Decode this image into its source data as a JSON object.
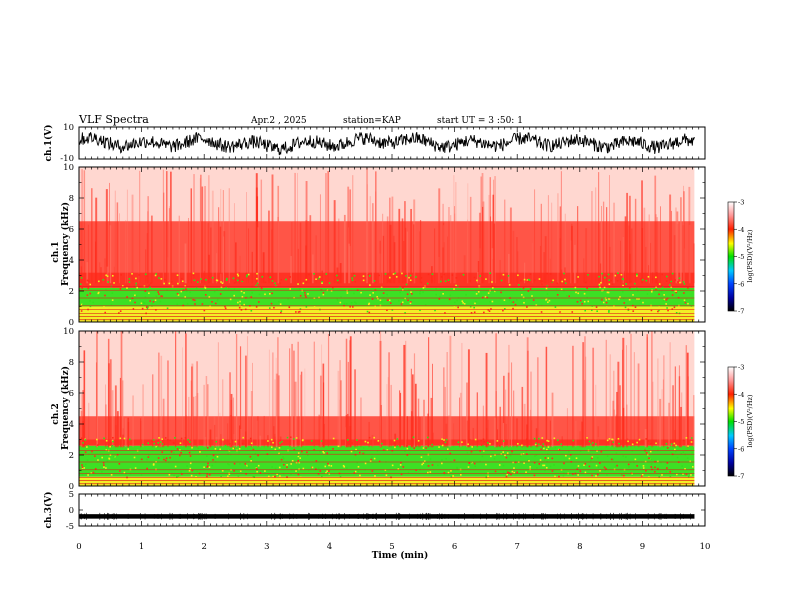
{
  "header": {
    "title": "VLF Spectra",
    "date": "Apr.2 , 2025",
    "station": "station=KAP",
    "start_time": "start UT = 3 :50: 1"
  },
  "colors": {
    "spectrogram_low": "#ff2a1a",
    "spectrogram_mid": "#33e01a",
    "spectrogram_high": "#f2ef1e",
    "background_quiet": "#ffd7d0"
  },
  "chart_data": [
    {
      "type": "line",
      "name": "waveform-ch1",
      "ylabel": "ch.1(V)",
      "ylim": [
        -10,
        10
      ],
      "y_tick_labels": [
        "10",
        "-10"
      ],
      "x": [
        0,
        1,
        2,
        3,
        4,
        5,
        6,
        7,
        8,
        9,
        9.83
      ],
      "y_approx_center": [
        2,
        -1,
        1,
        -2,
        0,
        2,
        -1,
        1,
        0,
        -1,
        0
      ],
      "y_approx_amplitude": 6
    },
    {
      "type": "heatmap",
      "name": "spectrogram-ch1",
      "ylabel": "ch.1 Frequency (kHz)",
      "ylim": [
        0,
        10
      ],
      "y_ticks": [
        0,
        2,
        4,
        6,
        8,
        10
      ],
      "y_tick_labels": [
        "0",
        "2",
        "4",
        "6",
        "8",
        "10"
      ],
      "xlim": [
        0,
        10
      ],
      "data_end_min": 9.83,
      "bands_khz": [
        {
          "from": 0,
          "to": 1.0,
          "level": "high"
        },
        {
          "from": 1.0,
          "to": 2.2,
          "level": "mid"
        },
        {
          "from": 2.2,
          "to": 3.2,
          "level": "mixed"
        },
        {
          "from": 3.2,
          "to": 6.5,
          "level": "low"
        },
        {
          "from": 6.5,
          "to": 10,
          "level": "quiet"
        }
      ],
      "colorbar": {
        "label": "log(PSD)(V²/Hz)",
        "ticks": [
          -3,
          -4,
          -5,
          -6,
          -7
        ],
        "tick_labels": [
          "-3",
          "-4",
          "-5",
          "-6",
          "-7"
        ],
        "range": [
          -7,
          -3
        ]
      }
    },
    {
      "type": "heatmap",
      "name": "spectrogram-ch2",
      "ylabel": "ch.2 Frequency (kHz)",
      "ylim": [
        0,
        10
      ],
      "y_ticks": [
        0,
        2,
        4,
        6,
        8,
        10
      ],
      "y_tick_labels": [
        "0",
        "2",
        "4",
        "6",
        "8",
        "10"
      ],
      "xlim": [
        0,
        10
      ],
      "data_end_min": 9.83,
      "bands_khz": [
        {
          "from": 0,
          "to": 0.6,
          "level": "high"
        },
        {
          "from": 0.6,
          "to": 2.6,
          "level": "mid"
        },
        {
          "from": 2.6,
          "to": 3.0,
          "level": "mixed"
        },
        {
          "from": 3.0,
          "to": 4.5,
          "level": "low"
        },
        {
          "from": 4.5,
          "to": 10,
          "level": "quiet"
        }
      ],
      "colorbar": {
        "label": "log(PSD)(V²/Hz)",
        "ticks": [
          -3,
          -4,
          -5,
          -6,
          -7
        ],
        "tick_labels": [
          "-3",
          "-4",
          "-5",
          "-6",
          "-7"
        ],
        "range": [
          -7,
          -3
        ]
      }
    },
    {
      "type": "line",
      "name": "waveform-ch3",
      "ylabel": "ch.3(V)",
      "ylim": [
        -5,
        5
      ],
      "y_ticks": [
        5,
        0,
        -5
      ],
      "y_tick_labels": [
        "5",
        "0",
        "-5"
      ],
      "x": [
        0,
        9.83
      ],
      "y_approx_center": [
        -2,
        -2
      ],
      "y_approx_amplitude": 0.7
    }
  ],
  "x_axis": {
    "label": "Time (min)",
    "range": [
      0,
      10
    ],
    "ticks": [
      0,
      1,
      2,
      3,
      4,
      5,
      6,
      7,
      8,
      9,
      10
    ],
    "tick_labels": [
      "0",
      "1",
      "2",
      "3",
      "4",
      "5",
      "6",
      "7",
      "8",
      "9",
      "10"
    ]
  }
}
